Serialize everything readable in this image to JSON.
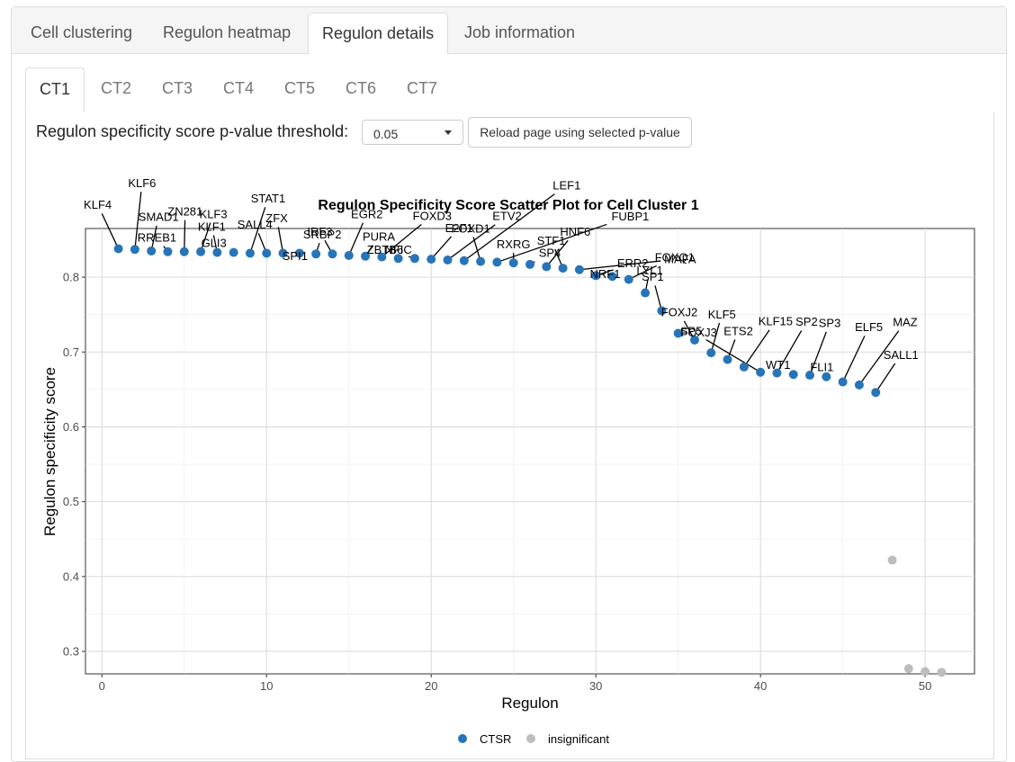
{
  "top_tabs": [
    "Cell clustering",
    "Regulon heatmap",
    "Regulon details",
    "Job information"
  ],
  "active_top_tab": "Regulon details",
  "sub_tabs": [
    "CT1",
    "CT2",
    "CT3",
    "CT4",
    "CT5",
    "CT6",
    "CT7"
  ],
  "active_sub_tab": "CT1",
  "controls": {
    "threshold_label": "Regulon specificity score p-value threshold:",
    "pvalue_selected": "0.05",
    "reload_label": "Reload page using selected p-value"
  },
  "chart_data": {
    "type": "scatter",
    "title": "Regulon Specificity Score Scatter Plot for Cell Cluster 1",
    "xlabel": "Regulon",
    "ylabel": "Regulon specificity score",
    "xlim": [
      -1,
      53
    ],
    "ylim": [
      0.27,
      0.865
    ],
    "xticks": [
      0,
      10,
      20,
      30,
      40,
      50
    ],
    "yticks": [
      0.3,
      0.4,
      0.5,
      0.6,
      0.7,
      0.8
    ],
    "grid": true,
    "legend_position": "bottom",
    "series": [
      {
        "name": "CTSR",
        "color": "#2874b8",
        "points": [
          {
            "x": 1,
            "y": 0.838,
            "label": "KLF4"
          },
          {
            "x": 2,
            "y": 0.837,
            "label": "KLF6"
          },
          {
            "x": 3,
            "y": 0.835,
            "label": "SMAD1"
          },
          {
            "x": 4,
            "y": 0.834,
            "label": "RREB1"
          },
          {
            "x": 5,
            "y": 0.834,
            "label": "ZN281"
          },
          {
            "x": 6,
            "y": 0.834,
            "label": "KLF3"
          },
          {
            "x": 7,
            "y": 0.833,
            "label": "KLF1"
          },
          {
            "x": 8,
            "y": 0.833,
            "label": "GLI3"
          },
          {
            "x": 9,
            "y": 0.832,
            "label": "STAT1"
          },
          {
            "x": 10,
            "y": 0.832,
            "label": "SALL4"
          },
          {
            "x": 11,
            "y": 0.832,
            "label": "ZFX"
          },
          {
            "x": 12,
            "y": 0.832,
            "label": "SPI1"
          },
          {
            "x": 13,
            "y": 0.831,
            "label": "SRBP2"
          },
          {
            "x": 14,
            "y": 0.831,
            "label": "IRF3"
          },
          {
            "x": 15,
            "y": 0.829,
            "label": "EGR2"
          },
          {
            "x": 16,
            "y": 0.828,
            "label": "PURA"
          },
          {
            "x": 17,
            "y": 0.827,
            "label": "FOXD3"
          },
          {
            "x": 18,
            "y": 0.825,
            "label": "NFIC"
          },
          {
            "x": 19,
            "y": 0.825,
            "label": "ZBTB6"
          },
          {
            "x": 20,
            "y": 0.824,
            "label": "E2F1"
          },
          {
            "x": 21,
            "y": 0.823,
            "label": "ETV2"
          },
          {
            "x": 22,
            "y": 0.822,
            "label": "LEF1"
          },
          {
            "x": 23,
            "y": 0.821,
            "label": "FOXD1"
          },
          {
            "x": 24,
            "y": 0.82,
            "label": "FUBP1"
          },
          {
            "x": 25,
            "y": 0.819,
            "label": "RXRG"
          },
          {
            "x": 26,
            "y": 0.817,
            "label": "SP4"
          },
          {
            "x": 27,
            "y": 0.814,
            "label": "HNF6"
          },
          {
            "x": 28,
            "y": 0.812,
            "label": "STF1"
          },
          {
            "x": 29,
            "y": 0.81,
            "label": "MAFA"
          },
          {
            "x": 30,
            "y": 0.802,
            "label": "ERR2"
          },
          {
            "x": 31,
            "y": 0.801,
            "label": "NRF1"
          },
          {
            "x": 32,
            "y": 0.797,
            "label": "FOXQ1"
          },
          {
            "x": 33,
            "y": 0.779,
            "label": "LYL1"
          },
          {
            "x": 34,
            "y": 0.755,
            "label": "SP1"
          },
          {
            "x": 35,
            "y": 0.725,
            "label": "FOXJ3"
          },
          {
            "x": 36,
            "y": 0.716,
            "label": "FOXJ2"
          },
          {
            "x": 37,
            "y": 0.699,
            "label": "KLF5"
          },
          {
            "x": 38,
            "y": 0.69,
            "label": "ETS2"
          },
          {
            "x": 39,
            "y": 0.68,
            "label": "KLF15"
          },
          {
            "x": 40,
            "y": 0.673,
            "label": "SP5"
          },
          {
            "x": 41,
            "y": 0.672,
            "label": "SP2"
          },
          {
            "x": 42,
            "y": 0.67,
            "label": "WT1"
          },
          {
            "x": 43,
            "y": 0.669,
            "label": "SP3"
          },
          {
            "x": 44,
            "y": 0.667,
            "label": "FLI1"
          },
          {
            "x": 45,
            "y": 0.66,
            "label": "ELF5"
          },
          {
            "x": 46,
            "y": 0.656,
            "label": "MAZ"
          },
          {
            "x": 47,
            "y": 0.646,
            "label": "SALL1"
          }
        ]
      },
      {
        "name": "insignificant",
        "color": "#bdbdbd",
        "points": [
          {
            "x": 48,
            "y": 0.422
          },
          {
            "x": 49,
            "y": 0.277
          },
          {
            "x": 50,
            "y": 0.273
          },
          {
            "x": 51,
            "y": 0.272
          }
        ]
      }
    ]
  }
}
